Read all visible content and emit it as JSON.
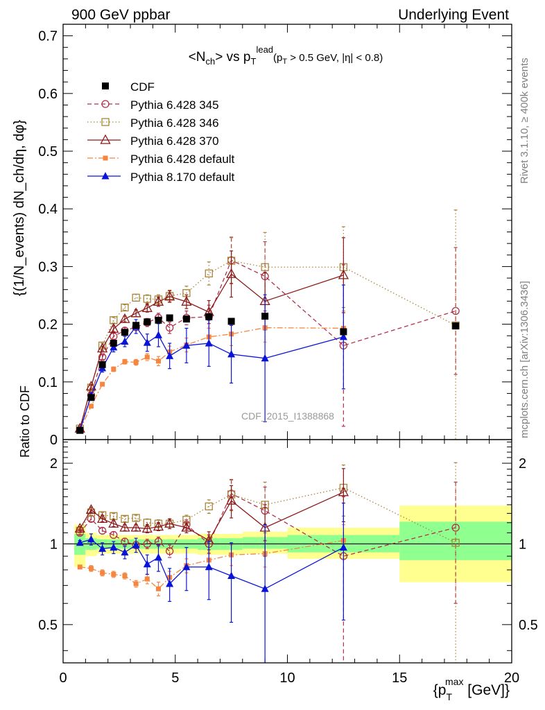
{
  "header": {
    "left_title": "900 GeV ppbar",
    "right_title": "Underlying Event"
  },
  "side_labels": {
    "rivet": "Rivet 3.1.10, ≥ 400k events",
    "mcplots": "mcplots.cern.ch [arXiv:1306.3436]"
  },
  "plot_title": {
    "main": "<N",
    "main_sub": "ch",
    "mid": "> vs p",
    "mid_sub": "T",
    "mid_sup": "lead",
    "cut": "(p",
    "cut_sub": "T",
    "cut_rest": " > 0.5 GeV, |η| < 0.8)"
  },
  "watermark": "CDF_2015_I1388868",
  "axis_labels": {
    "ylabel_main": "{(1/N_events) dN_ch/dη, dφ}",
    "ylabel_ratio": "Ratio to CDF",
    "xlabel_pre": "{p",
    "xlabel_sub": "T",
    "xlabel_sup": "max",
    "xlabel_post": " [GeV]}"
  },
  "colors": {
    "cdf": "#000000",
    "py345": "#b22f4a",
    "py346": "#a88538",
    "py370": "#8b1a1a",
    "py6def": "#f5853f",
    "py8def": "#0a14d8",
    "band_inner": "#8fff8f",
    "band_outer": "#ffff8f"
  },
  "chart_data": [
    {
      "type": "scatter",
      "panel": "main",
      "xlim": [
        0,
        20
      ],
      "ylim": [
        0,
        0.72
      ],
      "xticks": [
        0,
        5,
        10,
        15,
        20
      ],
      "yticks": [
        0,
        0.1,
        0.2,
        0.3,
        0.4,
        0.5,
        0.6,
        0.7
      ],
      "ytick_labels": [
        "0",
        "0.1",
        "0.2",
        "0.3",
        "0.4",
        "0.5",
        "0.6",
        "0.7"
      ],
      "legend_position": "top-left",
      "series": [
        {
          "name": "CDF",
          "key": "cdf",
          "marker": "square-filled",
          "x": [
            0.75,
            1.25,
            1.75,
            2.25,
            2.75,
            3.25,
            3.75,
            4.25,
            4.75,
            5.5,
            6.5,
            7.5,
            9.0,
            12.5,
            17.5
          ],
          "y": [
            0.016,
            0.073,
            0.13,
            0.167,
            0.186,
            0.198,
            0.204,
            0.207,
            0.211,
            0.209,
            0.213,
            0.205,
            0.214,
            0.187,
            0.197
          ]
        },
        {
          "name": "Pythia 6.428 345",
          "key": "py345",
          "marker": "circle-open",
          "line": "dashed",
          "x": [
            0.75,
            1.25,
            1.75,
            2.25,
            2.75,
            3.25,
            3.75,
            4.25,
            4.75,
            5.5,
            6.5,
            7.5,
            9.0,
            12.5,
            17.5
          ],
          "y": [
            0.017,
            0.077,
            0.143,
            0.179,
            0.189,
            0.195,
            0.203,
            0.211,
            0.194,
            0.211,
            0.213,
            0.311,
            0.283,
            0.163,
            0.223
          ],
          "yerr": [
            0.002,
            0.003,
            0.004,
            0.005,
            0.005,
            0.006,
            0.007,
            0.008,
            0.01,
            0.012,
            0.02,
            0.04,
            0.06,
            0.14,
            0.11
          ]
        },
        {
          "name": "Pythia 6.428 346",
          "key": "py346",
          "marker": "square-open",
          "line": "dotted",
          "x": [
            0.75,
            1.25,
            1.75,
            2.25,
            2.75,
            3.25,
            3.75,
            4.25,
            4.75,
            5.5,
            6.5,
            7.5,
            9.0,
            12.5,
            17.5
          ],
          "y": [
            0.019,
            0.09,
            0.163,
            0.207,
            0.229,
            0.246,
            0.244,
            0.243,
            0.249,
            0.254,
            0.288,
            0.31,
            0.299,
            0.299,
            0.198
          ],
          "yerr": [
            0.002,
            0.003,
            0.004,
            0.005,
            0.005,
            0.006,
            0.007,
            0.008,
            0.01,
            0.012,
            0.02,
            0.04,
            0.06,
            0.07,
            0.2
          ]
        },
        {
          "name": "Pythia 6.428 370",
          "key": "py370",
          "marker": "triangle-open",
          "line": "solid",
          "x": [
            0.75,
            1.25,
            1.75,
            2.25,
            2.75,
            3.25,
            3.75,
            4.25,
            4.75,
            5.5,
            6.5,
            7.5,
            9.0,
            12.5
          ],
          "y": [
            0.019,
            0.092,
            0.158,
            0.192,
            0.209,
            0.219,
            0.228,
            0.239,
            0.248,
            0.239,
            0.221,
            0.287,
            0.24,
            0.285
          ],
          "yerr": [
            0.002,
            0.003,
            0.004,
            0.005,
            0.005,
            0.006,
            0.007,
            0.008,
            0.01,
            0.012,
            0.02,
            0.04,
            0.05,
            0.065
          ]
        },
        {
          "name": "Pythia 6.428 default",
          "key": "py6def",
          "marker": "square-filled-small",
          "line": "dashdot",
          "x": [
            0.75,
            1.25,
            1.75,
            2.25,
            2.75,
            3.25,
            3.75,
            4.25,
            4.75,
            5.5,
            6.5,
            7.5,
            9.0,
            12.5
          ],
          "y": [
            0.017,
            0.058,
            0.096,
            0.122,
            0.135,
            0.134,
            0.143,
            0.136,
            0.152,
            0.164,
            0.178,
            0.183,
            0.194,
            0.193
          ],
          "yerr": [
            0.002,
            0.003,
            0.003,
            0.004,
            0.004,
            0.005,
            0.006,
            0.008,
            0.01,
            0.012,
            0.015,
            0.02,
            0.025,
            0.03
          ]
        },
        {
          "name": "Pythia 8.170 default",
          "key": "py8def",
          "marker": "triangle-filled",
          "line": "solid",
          "x": [
            0.75,
            1.25,
            1.75,
            2.25,
            2.75,
            3.25,
            3.75,
            4.25,
            4.75,
            5.5,
            6.5,
            7.5,
            9.0,
            12.5
          ],
          "y": [
            0.016,
            0.076,
            0.124,
            0.16,
            0.17,
            0.196,
            0.168,
            0.181,
            0.145,
            0.163,
            0.167,
            0.148,
            0.141,
            0.178
          ],
          "yerr": [
            0.002,
            0.005,
            0.007,
            0.008,
            0.009,
            0.012,
            0.015,
            0.02,
            0.022,
            0.03,
            0.04,
            0.05,
            0.11,
            0.09
          ]
        }
      ]
    },
    {
      "type": "scatter",
      "panel": "ratio",
      "ylabel": "Ratio to CDF",
      "xlim": [
        0,
        20
      ],
      "ylim": [
        0.36,
        2.45
      ],
      "log_y": true,
      "yticks": [
        0.5,
        1,
        2
      ],
      "ytick_labels": [
        "0.5",
        "1",
        "2"
      ],
      "reference_line": 1,
      "bands": {
        "x_edges": [
          0.5,
          1.0,
          1.5,
          2.0,
          2.5,
          3.0,
          3.5,
          4.0,
          4.5,
          5.0,
          6.0,
          7.0,
          8.0,
          10.0,
          15.0,
          20.0
        ],
        "inner_lo": [
          0.91,
          0.95,
          0.96,
          0.96,
          0.96,
          0.96,
          0.96,
          0.96,
          0.96,
          0.96,
          0.95,
          0.95,
          0.96,
          0.93,
          0.87
        ],
        "inner_hi": [
          1.09,
          1.05,
          1.04,
          1.04,
          1.04,
          1.04,
          1.04,
          1.04,
          1.04,
          1.04,
          1.05,
          1.05,
          1.06,
          1.08,
          1.21
        ],
        "outer_lo": [
          0.82,
          0.9,
          0.92,
          0.92,
          0.92,
          0.92,
          0.92,
          0.92,
          0.92,
          0.92,
          0.91,
          0.91,
          0.92,
          0.88,
          0.72
        ],
        "outer_hi": [
          1.18,
          1.1,
          1.08,
          1.08,
          1.08,
          1.08,
          1.08,
          1.08,
          1.08,
          1.08,
          1.09,
          1.09,
          1.11,
          1.15,
          1.39
        ]
      },
      "series": [
        {
          "key": "py345",
          "x": [
            0.75,
            1.25,
            1.75,
            2.25,
            2.75,
            3.25,
            3.75,
            4.25,
            4.75,
            5.5,
            6.5,
            7.5,
            9.0,
            12.5,
            17.5
          ],
          "y": [
            1.1,
            1.24,
            1.12,
            1.08,
            1.02,
            0.99,
            1.0,
            1.02,
            0.94,
            1.18,
            1.0,
            1.54,
            1.33,
            0.9,
            1.15
          ],
          "yerr": [
            0.02,
            0.03,
            0.03,
            0.03,
            0.03,
            0.03,
            0.04,
            0.04,
            0.05,
            0.05,
            0.08,
            0.2,
            0.3,
            0.6,
            0.55
          ]
        },
        {
          "key": "py346",
          "x": [
            0.75,
            1.25,
            1.75,
            2.25,
            2.75,
            3.25,
            3.75,
            4.25,
            4.75,
            5.5,
            6.5,
            7.5,
            9.0,
            12.5,
            17.5
          ],
          "y": [
            1.12,
            1.31,
            1.28,
            1.27,
            1.24,
            1.25,
            1.2,
            1.19,
            1.19,
            1.23,
            1.38,
            1.53,
            1.4,
            1.62,
            1.01
          ],
          "yerr": [
            0.02,
            0.03,
            0.03,
            0.03,
            0.03,
            0.03,
            0.04,
            0.04,
            0.05,
            0.05,
            0.08,
            0.2,
            0.3,
            0.35,
            1.0
          ]
        },
        {
          "key": "py370",
          "x": [
            0.75,
            1.25,
            1.75,
            2.25,
            2.75,
            3.25,
            3.75,
            4.25,
            4.75,
            5.5,
            6.5,
            7.5,
            9.0,
            12.5
          ],
          "y": [
            1.14,
            1.34,
            1.24,
            1.19,
            1.15,
            1.15,
            1.14,
            1.16,
            1.19,
            1.15,
            1.03,
            1.45,
            1.15,
            1.56
          ],
          "yerr": [
            0.02,
            0.03,
            0.03,
            0.03,
            0.03,
            0.03,
            0.04,
            0.04,
            0.05,
            0.05,
            0.08,
            0.2,
            0.25,
            0.35
          ]
        },
        {
          "key": "py6def",
          "x": [
            0.75,
            1.25,
            1.75,
            2.25,
            2.75,
            3.25,
            3.75,
            4.25,
            4.75,
            5.5,
            6.5,
            7.5,
            9.0,
            12.5
          ],
          "y": [
            0.82,
            0.81,
            0.78,
            0.77,
            0.76,
            0.71,
            0.74,
            0.68,
            0.75,
            0.83,
            0.87,
            0.91,
            0.92,
            1.03
          ],
          "yerr": [
            0.01,
            0.02,
            0.02,
            0.02,
            0.02,
            0.02,
            0.03,
            0.04,
            0.04,
            0.05,
            0.06,
            0.08,
            0.1,
            0.15
          ]
        },
        {
          "key": "py8def",
          "x": [
            0.75,
            1.25,
            1.75,
            2.25,
            2.75,
            3.25,
            3.75,
            4.25,
            4.75,
            5.5,
            6.5,
            7.5,
            9.0,
            12.5
          ],
          "y": [
            1.01,
            1.04,
            0.96,
            0.97,
            0.93,
            0.99,
            0.84,
            0.89,
            0.71,
            0.82,
            0.82,
            0.76,
            0.68,
            0.97
          ],
          "yerr": [
            0.02,
            0.05,
            0.05,
            0.05,
            0.05,
            0.06,
            0.07,
            0.1,
            0.1,
            0.15,
            0.2,
            0.25,
            0.5,
            0.45
          ]
        }
      ]
    }
  ]
}
